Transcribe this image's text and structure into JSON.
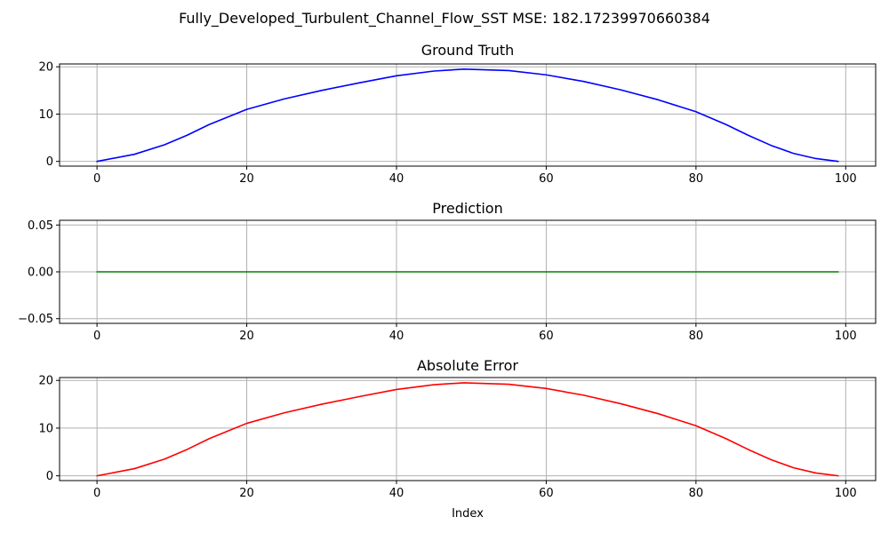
{
  "figure": {
    "suptitle": "Fully_Developed_Turbulent_Channel_Flow_SST MSE: 182.17239970660384",
    "background": "#ffffff",
    "grid_color": "#b0b0b0"
  },
  "chart_data": [
    {
      "type": "line",
      "title": "Ground Truth",
      "xlabel": "",
      "ylabel": "",
      "xlim": [
        -5,
        104
      ],
      "ylim": [
        -1,
        20.6
      ],
      "xticks": [
        0,
        20,
        40,
        60,
        80,
        100
      ],
      "yticks": [
        0,
        10,
        20
      ],
      "ytick_labels": [
        "0",
        "10",
        "20"
      ],
      "grid": true,
      "series": [
        {
          "color": "#0000ff",
          "x": [
            0,
            5,
            9,
            12,
            15,
            20,
            25,
            30,
            35,
            40,
            45,
            49,
            55,
            60,
            65,
            70,
            75,
            80,
            84,
            87,
            90,
            93,
            96,
            99
          ],
          "y": [
            0,
            1.5,
            3.5,
            5.5,
            7.8,
            11.0,
            13.2,
            15.0,
            16.6,
            18.1,
            19.1,
            19.5,
            19.2,
            18.3,
            16.9,
            15.1,
            13.0,
            10.5,
            7.8,
            5.5,
            3.4,
            1.7,
            0.6,
            0
          ]
        }
      ]
    },
    {
      "type": "line",
      "title": "Prediction",
      "xlabel": "",
      "ylabel": "",
      "xlim": [
        -5,
        104
      ],
      "ylim": [
        -0.055,
        0.055
      ],
      "xticks": [
        0,
        20,
        40,
        60,
        80,
        100
      ],
      "yticks": [
        -0.05,
        0,
        0.05
      ],
      "ytick_labels": [
        "−0.05",
        "0.00",
        "0.05"
      ],
      "grid": true,
      "series": [
        {
          "color": "#008000",
          "x": [
            0,
            99
          ],
          "y": [
            0,
            0
          ]
        }
      ]
    },
    {
      "type": "line",
      "title": "Absolute Error",
      "xlabel": "Index",
      "ylabel": "",
      "xlim": [
        -5,
        104
      ],
      "ylim": [
        -1,
        20.6
      ],
      "xticks": [
        0,
        20,
        40,
        60,
        80,
        100
      ],
      "yticks": [
        0,
        10,
        20
      ],
      "ytick_labels": [
        "0",
        "10",
        "20"
      ],
      "grid": true,
      "series": [
        {
          "color": "#ff0000",
          "x": [
            0,
            5,
            9,
            12,
            15,
            20,
            25,
            30,
            35,
            40,
            45,
            49,
            55,
            60,
            65,
            70,
            75,
            80,
            84,
            87,
            90,
            93,
            96,
            99
          ],
          "y": [
            0,
            1.5,
            3.5,
            5.5,
            7.8,
            11.0,
            13.2,
            15.0,
            16.6,
            18.1,
            19.1,
            19.5,
            19.2,
            18.3,
            16.9,
            15.1,
            13.0,
            10.5,
            7.8,
            5.5,
            3.4,
            1.7,
            0.6,
            0
          ]
        }
      ]
    }
  ]
}
